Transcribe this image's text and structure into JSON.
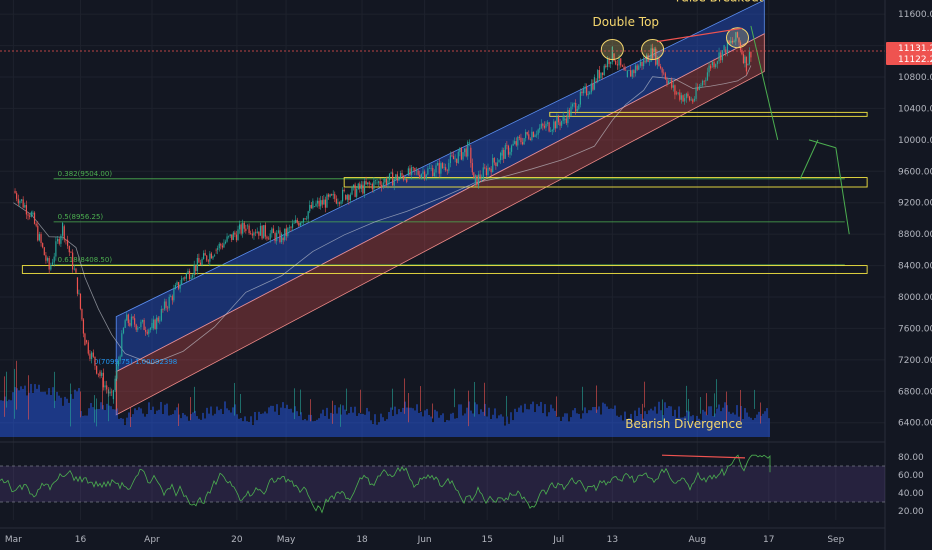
{
  "chart_data": [
    {
      "type": "line",
      "panel": "price",
      "instrument_unit": "USD",
      "price_axis": {
        "ticks": [
          6400,
          6800,
          7200,
          7600,
          8000,
          8400,
          8800,
          9200,
          9600,
          10000,
          10400,
          10800,
          11200,
          11600
        ],
        "tick_labels": [
          "6400.00",
          "6800.00",
          "7200.00",
          "7600.00",
          "8000.00",
          "8400.00",
          "8800.00",
          "9200.00",
          "9600.00",
          "10000.00",
          "10400.00",
          "10800.00",
          "11200.00",
          "11600.00"
        ],
        "ylim": [
          6180,
          11780
        ],
        "scale": "linear"
      },
      "time_axis": {
        "labels": [
          "Mar",
          "16",
          "Apr",
          "20",
          "May",
          "18",
          "Jun",
          "15",
          "Jul",
          "13",
          "Aug",
          "17",
          "Sep"
        ]
      },
      "price_labels": [
        "11131.25",
        "11122.25"
      ],
      "last_price": 11131.25,
      "fib_levels": [
        {
          "label": "0.382(9504.00)",
          "value": 9504
        },
        {
          "label": "0.5(8956.25)",
          "value": 8956.25
        },
        {
          "label": "0.618(8408.50)",
          "value": 8408.5
        }
      ],
      "fib_start_label": "0(7099.75) 1.00092398",
      "price_series_key_points": [
        {
          "date": "2020-03-01",
          "value": 9350
        },
        {
          "date": "2020-03-05",
          "value": 9050
        },
        {
          "date": "2020-03-09",
          "value": 8350
        },
        {
          "date": "2020-03-12",
          "value": 8900
        },
        {
          "date": "2020-03-15",
          "value": 8250
        },
        {
          "date": "2020-03-17",
          "value": 7450
        },
        {
          "date": "2020-03-20",
          "value": 7050
        },
        {
          "date": "2020-03-23",
          "value": 6700
        },
        {
          "date": "2020-03-26",
          "value": 7700
        },
        {
          "date": "2020-04-01",
          "value": 7600
        },
        {
          "date": "2020-04-08",
          "value": 8250
        },
        {
          "date": "2020-04-15",
          "value": 8600
        },
        {
          "date": "2020-04-22",
          "value": 8900
        },
        {
          "date": "2020-04-30",
          "value": 8750
        },
        {
          "date": "2020-05-07",
          "value": 9150
        },
        {
          "date": "2020-05-14",
          "value": 9300
        },
        {
          "date": "2020-05-21",
          "value": 9450
        },
        {
          "date": "2020-05-28",
          "value": 9550
        },
        {
          "date": "2020-06-05",
          "value": 9650
        },
        {
          "date": "2020-06-11",
          "value": 9900
        },
        {
          "date": "2020-06-12",
          "value": 9450
        },
        {
          "date": "2020-06-18",
          "value": 9800
        },
        {
          "date": "2020-06-25",
          "value": 10100
        },
        {
          "date": "2020-07-02",
          "value": 10250
        },
        {
          "date": "2020-07-09",
          "value": 10750
        },
        {
          "date": "2020-07-13",
          "value": 11100
        },
        {
          "date": "2020-07-16",
          "value": 10800
        },
        {
          "date": "2020-07-20",
          "value": 11000
        },
        {
          "date": "2020-07-22",
          "value": 11120
        },
        {
          "date": "2020-07-27",
          "value": 10600
        },
        {
          "date": "2020-07-31",
          "value": 10500
        },
        {
          "date": "2020-08-04",
          "value": 10950
        },
        {
          "date": "2020-08-07",
          "value": 11150
        },
        {
          "date": "2020-08-10",
          "value": 11300
        },
        {
          "date": "2020-08-12",
          "value": 10950
        },
        {
          "date": "2020-08-13",
          "value": 11131.25
        }
      ],
      "projection_path": [
        {
          "date": "2020-08-13",
          "value": 11450
        },
        {
          "date": "2020-08-19",
          "value": 10000
        },
        {
          "date": "2020-08-26",
          "value": 10000
        },
        {
          "date": "2020-09-01",
          "value": 9900
        },
        {
          "date": "2020-09-04",
          "value": 8800
        }
      ],
      "annotations": [
        {
          "text": "Double Top",
          "color": "#f5d76e"
        },
        {
          "text": "False Breakout",
          "color": "#f5d76e"
        },
        {
          "text": "Bearish Divergence",
          "color": "#f5d76e"
        }
      ],
      "support_zones": [
        {
          "low": 10300,
          "high": 10350
        },
        {
          "low": 9400,
          "high": 9520
        },
        {
          "low": 8300,
          "high": 8400
        }
      ],
      "colors": {
        "up": "#26a69a",
        "down": "#ef5350",
        "channel_upper": "#2962ff",
        "channel_lower": "#ef5350",
        "fib": "#4caf50",
        "zone": "#f5e642",
        "projection": "#4caf50",
        "annotation": "#f5d76e"
      }
    },
    {
      "type": "line",
      "panel": "rsi",
      "yaxis": {
        "ticks": [
          20,
          40,
          60,
          80
        ],
        "tick_labels": [
          "20.00",
          "40.00",
          "60.00",
          "80.00"
        ],
        "ylim": [
          10,
          90
        ]
      },
      "bands": [
        30,
        70
      ],
      "last_value": 63,
      "color": "#4caf50"
    }
  ]
}
